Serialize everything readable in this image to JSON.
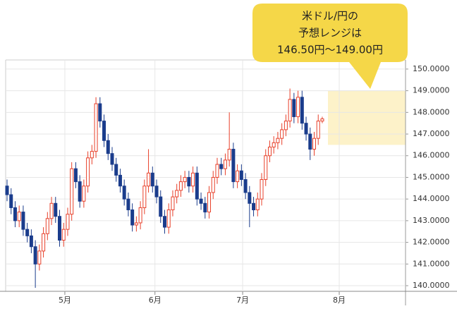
{
  "chart_data": {
    "type": "candlestick",
    "x": [
      0,
      1,
      2,
      3,
      4,
      5,
      6,
      7,
      8,
      9,
      10,
      11,
      12,
      13,
      14,
      15,
      16,
      17,
      18,
      19,
      20,
      21,
      22,
      23,
      24,
      25,
      26,
      27,
      28,
      29,
      30,
      31,
      32,
      33,
      34,
      35,
      36,
      37,
      38,
      39,
      40,
      41,
      42,
      43,
      44,
      45,
      46,
      47,
      48,
      49,
      50,
      51,
      52,
      53,
      54,
      55,
      56,
      57,
      58,
      59,
      60,
      61,
      62,
      63,
      64,
      65,
      66,
      67,
      68,
      69,
      70,
      71,
      72,
      73,
      74,
      75,
      76,
      77,
      78
    ],
    "open": [
      144.6,
      144.2,
      143.6,
      143.0,
      143.4,
      142.6,
      142.3,
      141.8,
      141.0,
      141.6,
      142.4,
      143.1,
      143.8,
      143.2,
      142.1,
      142.6,
      143.3,
      145.4,
      144.8,
      143.9,
      144.6,
      145.9,
      146.2,
      148.4,
      147.6,
      146.7,
      146.1,
      145.6,
      145.1,
      144.6,
      144.0,
      143.5,
      142.8,
      142.9,
      143.6,
      144.6,
      145.2,
      144.6,
      144.1,
      143.2,
      142.7,
      143.5,
      144.1,
      144.4,
      144.8,
      145.0,
      144.6,
      145.2,
      144.0,
      143.8,
      143.4,
      144.3,
      145.0,
      145.6,
      145.4,
      145.8,
      146.3,
      144.8,
      145.3,
      144.9,
      144.3,
      143.8,
      143.5,
      144.0,
      144.9,
      146.0,
      146.4,
      146.6,
      146.8,
      147.2,
      147.6,
      148.6,
      147.8,
      148.7,
      147.5,
      147.0,
      146.3,
      146.8,
      147.6
    ],
    "high": [
      144.9,
      144.5,
      143.9,
      143.7,
      143.7,
      142.9,
      142.6,
      142.1,
      141.9,
      142.7,
      143.4,
      144.1,
      144.1,
      143.5,
      142.9,
      143.6,
      145.7,
      145.7,
      145.1,
      144.9,
      146.2,
      146.5,
      148.7,
      148.7,
      147.9,
      147.0,
      146.4,
      145.9,
      145.4,
      144.9,
      144.3,
      143.8,
      143.2,
      143.9,
      144.9,
      146.3,
      145.5,
      144.9,
      144.4,
      143.5,
      143.8,
      144.4,
      144.7,
      145.1,
      145.3,
      145.3,
      145.5,
      145.5,
      144.3,
      144.1,
      144.6,
      145.3,
      145.9,
      145.9,
      146.1,
      148.0,
      146.6,
      145.6,
      145.6,
      145.2,
      144.6,
      144.1,
      144.3,
      145.2,
      146.3,
      146.7,
      146.9,
      147.1,
      147.5,
      147.9,
      149.1,
      148.9,
      149.0,
      149.0,
      147.8,
      147.3,
      147.1,
      147.9,
      147.8
    ],
    "low": [
      143.9,
      143.3,
      142.7,
      142.7,
      142.3,
      142.0,
      141.5,
      139.9,
      140.7,
      141.3,
      142.1,
      142.8,
      142.9,
      141.8,
      141.8,
      142.3,
      143.0,
      144.5,
      143.6,
      143.6,
      144.3,
      145.6,
      145.9,
      147.3,
      146.4,
      145.8,
      145.3,
      144.8,
      144.3,
      143.7,
      143.2,
      142.5,
      142.5,
      142.6,
      143.3,
      144.3,
      144.3,
      143.8,
      142.9,
      142.4,
      142.4,
      143.2,
      143.8,
      144.1,
      144.5,
      144.3,
      144.3,
      143.7,
      143.5,
      143.1,
      143.1,
      144.0,
      144.7,
      145.1,
      145.1,
      145.5,
      144.5,
      144.5,
      144.6,
      144.0,
      142.7,
      143.2,
      143.2,
      143.7,
      144.6,
      145.7,
      146.1,
      146.3,
      146.5,
      146.9,
      147.3,
      147.5,
      147.5,
      147.2,
      146.7,
      145.8,
      146.0,
      146.5,
      147.5
    ],
    "close": [
      144.2,
      143.6,
      143.0,
      143.4,
      142.6,
      142.3,
      141.8,
      141.0,
      141.6,
      142.4,
      143.1,
      143.8,
      143.2,
      142.1,
      142.6,
      143.3,
      145.4,
      144.8,
      143.9,
      144.6,
      145.9,
      146.2,
      148.4,
      147.6,
      146.7,
      146.1,
      145.6,
      145.1,
      144.6,
      144.0,
      143.5,
      142.8,
      142.9,
      143.6,
      144.6,
      145.2,
      144.6,
      144.1,
      143.2,
      142.7,
      143.5,
      144.1,
      144.4,
      144.8,
      145.0,
      144.6,
      145.2,
      144.0,
      143.8,
      143.4,
      144.3,
      145.0,
      145.6,
      145.4,
      145.8,
      146.3,
      144.8,
      145.3,
      144.9,
      144.3,
      143.8,
      143.5,
      144.0,
      144.9,
      146.0,
      146.4,
      146.6,
      146.8,
      147.2,
      147.6,
      148.6,
      147.8,
      148.7,
      147.5,
      147.0,
      146.3,
      146.8,
      147.6,
      147.7
    ],
    "up_color": "#e8402a",
    "down_color": "#1a3c8c",
    "xlim": [
      -0.35,
      98.6
    ],
    "xticks": [
      {
        "value": 14.3,
        "label": "5月"
      },
      {
        "value": 36.6,
        "label": "6月"
      },
      {
        "value": 58.3,
        "label": "7月"
      },
      {
        "value": 82.2,
        "label": "8月"
      }
    ],
    "ylim": [
      139.74,
      150.42
    ],
    "yticks": [
      {
        "value": 140,
        "label": "140.0000"
      },
      {
        "value": 141,
        "label": "141.0000"
      },
      {
        "value": 142,
        "label": "142.0000"
      },
      {
        "value": 143,
        "label": "143.0000"
      },
      {
        "value": 144,
        "label": "144.0000"
      },
      {
        "value": 145,
        "label": "145.0000"
      },
      {
        "value": 146,
        "label": "146.0000"
      },
      {
        "value": 147,
        "label": "147.0000"
      },
      {
        "value": 148,
        "label": "148.0000"
      },
      {
        "value": 149,
        "label": "149.0000"
      },
      {
        "value": 150,
        "label": "150.0000"
      }
    ],
    "grid": true,
    "forecast_range": [
      146.5,
      149.0
    ],
    "forecast_color": "#fdf0c0",
    "annotation": [
      "米ドル/円の",
      "予想レンジは",
      "146.50円～149.00円"
    ]
  }
}
